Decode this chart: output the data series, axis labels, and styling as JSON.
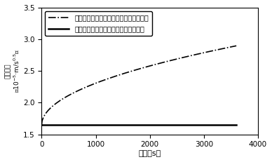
{
  "xlabel": "时间（s）",
  "ylabel": "滲失系数 (10^-5 m/s^0.5)",
  "xlim": [
    0,
    4000
  ],
  "ylim": [
    1.5,
    3.5
  ],
  "xticks": [
    0,
    1000,
    2000,
    3000,
    4000
  ],
  "yticks": [
    1.5,
    2.0,
    2.5,
    3.0,
    3.5
  ],
  "line1_label": "考虑酸液滤天然裂缝的降压综合滲失系数",
  "line2_label": "不考虑酸液滤天然裂缝的综合滲失系数",
  "line1_color": "#000000",
  "line2_color": "#000000",
  "line1_style": "-.",
  "line2_style": "-",
  "constant_value": 1.65,
  "sqrt_a": 1.65,
  "sqrt_b": 0.0208,
  "t_max": 3600,
  "bg_color": "#ffffff"
}
